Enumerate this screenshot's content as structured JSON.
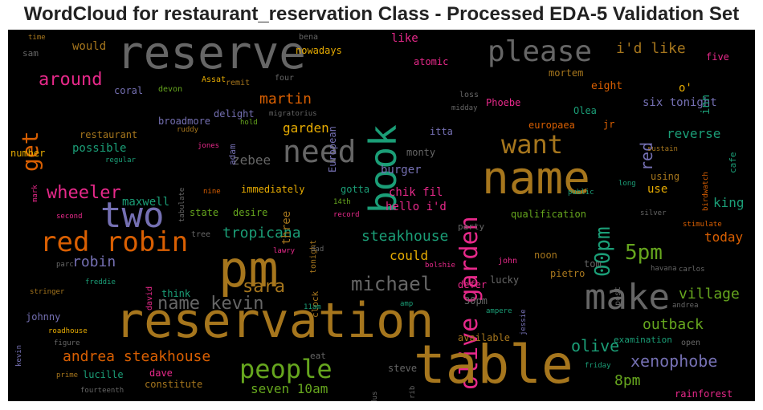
{
  "title": "WordCloud for restaurant_reservation Class - Processed EDA-5 Validation Set",
  "chart_data": {
    "type": "wordcloud",
    "words": [
      {
        "text": "reserve",
        "color": "#666666"
      },
      {
        "text": "book",
        "color": "#1b9e77"
      },
      {
        "text": "olive garden",
        "color": "#e7298a"
      },
      {
        "text": "please",
        "color": "#666666"
      },
      {
        "text": "name",
        "color": "#a6761d"
      },
      {
        "text": "i'd like",
        "color": "#a6761d"
      },
      {
        "text": "get",
        "color": "#d95f02"
      },
      {
        "text": "around",
        "color": "#e7298a"
      },
      {
        "text": "two",
        "color": "#7570b3"
      },
      {
        "text": "red robin",
        "color": "#d95f02"
      },
      {
        "text": "pm",
        "color": "#a6761d"
      },
      {
        "text": "reservation",
        "color": "#a6761d"
      },
      {
        "text": "table",
        "color": "#a6761d"
      },
      {
        "text": "make",
        "color": "#666666"
      },
      {
        "text": "need",
        "color": "#666666"
      },
      {
        "text": "want",
        "color": "#a6761d"
      },
      {
        "text": "wheeler",
        "color": "#e7298a"
      },
      {
        "text": "people",
        "color": "#66a61e"
      },
      {
        "text": "michael",
        "color": "#666666"
      },
      {
        "text": "5pm",
        "color": "#66a61e"
      },
      {
        "text": "00pm",
        "color": "#1b9e77"
      },
      {
        "text": "name kevin",
        "color": "#666666"
      },
      {
        "text": "andrea steakhouse",
        "color": "#d95f02"
      },
      {
        "text": "xenophobe",
        "color": "#7570b3"
      },
      {
        "text": "steakhouse",
        "color": "#1b9e77"
      },
      {
        "text": "martin",
        "color": "#d95f02"
      },
      {
        "text": "tropicana",
        "color": "#1b9e77"
      },
      {
        "text": "sara",
        "color": "#a6761d"
      },
      {
        "text": "robin",
        "color": "#7570b3"
      },
      {
        "text": "red",
        "color": "#7570b3"
      },
      {
        "text": "village",
        "color": "#66a61e"
      },
      {
        "text": "outback",
        "color": "#66a61e"
      },
      {
        "text": "olive",
        "color": "#1b9e77"
      },
      {
        "text": "8pm",
        "color": "#66a61e"
      },
      {
        "text": "seven 10am",
        "color": "#66a61e"
      },
      {
        "text": "garden",
        "color": "#e6ab02"
      },
      {
        "text": "could",
        "color": "#e6ab02"
      },
      {
        "text": "today",
        "color": "#d95f02"
      },
      {
        "text": "king",
        "color": "#1b9e77"
      },
      {
        "text": "use",
        "color": "#e6ab02"
      },
      {
        "text": "reverse",
        "color": "#1b9e77"
      },
      {
        "text": "six tonight",
        "color": "#7570b3"
      },
      {
        "text": "like",
        "color": "#e7298a"
      },
      {
        "text": "would",
        "color": "#a6761d"
      },
      {
        "text": "zebee",
        "color": "#666666"
      },
      {
        "text": "three",
        "color": "#a6761d"
      },
      {
        "text": "burger",
        "color": "#7570b3"
      },
      {
        "text": "chik fil",
        "color": "#e7298a"
      },
      {
        "text": "hello i'd",
        "color": "#e7298a"
      },
      {
        "text": "possible",
        "color": "#1b9e77"
      },
      {
        "text": "maxwell",
        "color": "#1b9e77"
      },
      {
        "text": "inn",
        "color": "#1b9e77"
      },
      {
        "text": "o'",
        "color": "#e6ab02"
      },
      {
        "text": "eight",
        "color": "#d95f02"
      },
      {
        "text": "atomic",
        "color": "#e7298a"
      },
      {
        "text": "Phoebe",
        "color": "#e7298a"
      },
      {
        "text": "Olea",
        "color": "#1b9e77"
      },
      {
        "text": "europaea",
        "color": "#d95f02"
      },
      {
        "text": "jr",
        "color": "#d95f02"
      },
      {
        "text": "five",
        "color": "#e7298a"
      },
      {
        "text": "mortem",
        "color": "#a6761d"
      },
      {
        "text": "time",
        "color": "#a6761d"
      },
      {
        "text": "sam",
        "color": "#666666"
      },
      {
        "text": "coral",
        "color": "#7570b3"
      },
      {
        "text": "devon",
        "color": "#66a61e"
      },
      {
        "text": "Assat",
        "color": "#e6ab02"
      },
      {
        "text": "remit",
        "color": "#a6761d"
      },
      {
        "text": "nowadays",
        "color": "#e6ab02"
      },
      {
        "text": "bena",
        "color": "#666666"
      },
      {
        "text": "four",
        "color": "#666666"
      },
      {
        "text": "European",
        "color": "#7570b3"
      },
      {
        "text": "loss",
        "color": "#666666"
      },
      {
        "text": "midday",
        "color": "#666666"
      },
      {
        "text": "itta",
        "color": "#7570b3"
      },
      {
        "text": "restaurant",
        "color": "#a6761d"
      },
      {
        "text": "broadmore",
        "color": "#7570b3"
      },
      {
        "text": "delight",
        "color": "#7570b3"
      },
      {
        "text": "adam",
        "color": "#7570b3"
      },
      {
        "text": "hold",
        "color": "#66a61e"
      },
      {
        "text": "migratorius",
        "color": "#666666"
      },
      {
        "text": "ruddy",
        "color": "#a6761d"
      },
      {
        "text": "jones",
        "color": "#e7298a"
      },
      {
        "text": "number",
        "color": "#e6ab02"
      },
      {
        "text": "regular",
        "color": "#1b9e77"
      },
      {
        "text": "tabulate",
        "color": "#666666"
      },
      {
        "text": "mark",
        "color": "#e7298a"
      },
      {
        "text": "nine",
        "color": "#d95f02"
      },
      {
        "text": "second",
        "color": "#e7298a"
      },
      {
        "text": "state",
        "color": "#66a61e"
      },
      {
        "text": "desire",
        "color": "#66a61e"
      },
      {
        "text": "immediately",
        "color": "#e6ab02"
      },
      {
        "text": "gotta",
        "color": "#1b9e77"
      },
      {
        "text": "14th",
        "color": "#66a61e"
      },
      {
        "text": "record",
        "color": "#e7298a"
      },
      {
        "text": "monty",
        "color": "#666666"
      },
      {
        "text": "cafe",
        "color": "#1b9e77"
      },
      {
        "text": "sustain",
        "color": "#a6761d"
      },
      {
        "text": "birdwatch",
        "color": "#d95f02"
      },
      {
        "text": "long",
        "color": "#1b9e77"
      },
      {
        "text": "public",
        "color": "#1b9e77"
      },
      {
        "text": "silver",
        "color": "#666666"
      },
      {
        "text": "stimulate",
        "color": "#d95f02"
      },
      {
        "text": "using",
        "color": "#a6761d"
      },
      {
        "text": "qualification",
        "color": "#66a61e"
      },
      {
        "text": "party",
        "color": "#666666"
      },
      {
        "text": "tree",
        "color": "#666666"
      },
      {
        "text": "tonight",
        "color": "#a6761d"
      },
      {
        "text": "lawry",
        "color": "#e7298a"
      },
      {
        "text": "dad",
        "color": "#666666"
      },
      {
        "text": "bolshie",
        "color": "#e7298a"
      },
      {
        "text": "parc",
        "color": "#666666"
      },
      {
        "text": "freddie",
        "color": "#1b9e77"
      },
      {
        "text": "david",
        "color": "#e7298a"
      },
      {
        "text": "noon",
        "color": "#a6761d"
      },
      {
        "text": "john",
        "color": "#e7298a"
      },
      {
        "text": "tom",
        "color": "#666666"
      },
      {
        "text": "post",
        "color": "#666666"
      },
      {
        "text": "pietro",
        "color": "#a6761d"
      },
      {
        "text": "havana",
        "color": "#666666"
      },
      {
        "text": "carlos",
        "color": "#666666"
      },
      {
        "text": "think",
        "color": "#1b9e77"
      },
      {
        "text": "clock",
        "color": "#a6761d"
      },
      {
        "text": "11am",
        "color": "#1b9e77"
      },
      {
        "text": "defer",
        "color": "#e7298a"
      },
      {
        "text": "lucky",
        "color": "#666666"
      },
      {
        "text": "30pm",
        "color": "#666666"
      },
      {
        "text": "ampere",
        "color": "#1b9e77"
      },
      {
        "text": "jessie",
        "color": "#7570b3"
      },
      {
        "text": "amp",
        "color": "#1b9e77"
      },
      {
        "text": "andrea",
        "color": "#666666"
      },
      {
        "text": "stringer",
        "color": "#a6761d"
      },
      {
        "text": "johnny",
        "color": "#7570b3"
      },
      {
        "text": "roadhouse",
        "color": "#e6ab02"
      },
      {
        "text": "kevin",
        "color": "#7570b3"
      },
      {
        "text": "figure",
        "color": "#666666"
      },
      {
        "text": "prime",
        "color": "#a6761d"
      },
      {
        "text": "lucille",
        "color": "#1b9e77"
      },
      {
        "text": "dave",
        "color": "#e7298a"
      },
      {
        "text": "constitute",
        "color": "#a6761d"
      },
      {
        "text": "fourteenth",
        "color": "#666666"
      },
      {
        "text": "eat",
        "color": "#666666"
      },
      {
        "text": "steve",
        "color": "#666666"
      },
      {
        "text": "Turdus",
        "color": "#666666"
      },
      {
        "text": "rib",
        "color": "#666666"
      },
      {
        "text": "available",
        "color": "#a6761d"
      },
      {
        "text": "examination",
        "color": "#1b9e77"
      },
      {
        "text": "open",
        "color": "#666666"
      },
      {
        "text": "friday",
        "color": "#1b9e77"
      },
      {
        "text": "rainforest",
        "color": "#e7298a"
      }
    ]
  }
}
